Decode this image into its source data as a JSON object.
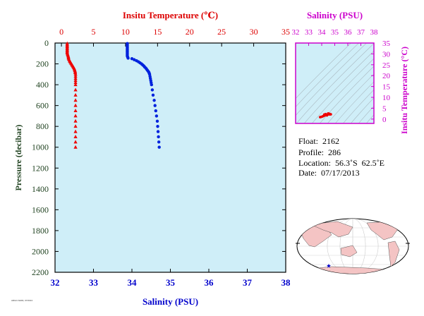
{
  "chart_data": [
    {
      "type": "scatter",
      "title": "",
      "top_axis": {
        "label": "Insitu Temperature (℃)",
        "range": [
          -1,
          35
        ],
        "ticks": [
          0,
          5,
          10,
          15,
          20,
          25,
          30,
          35
        ],
        "color": "#dd0000"
      },
      "bottom_axis": {
        "label": "Salinity (PSU)",
        "range": [
          32,
          38
        ],
        "ticks": [
          32,
          33,
          34,
          35,
          36,
          37,
          38
        ],
        "color": "#0000cc"
      },
      "y_axis": {
        "label": "Pressure (decibar)",
        "range": [
          0,
          2200
        ],
        "inverted": true,
        "ticks": [
          0,
          200,
          400,
          600,
          800,
          1000,
          1200,
          1400,
          1600,
          1800,
          2000,
          2200
        ],
        "color": "#224422"
      },
      "background": "#cfeef8",
      "series": [
        {
          "marker": "triangle",
          "color": "#ee0000",
          "axis": "top",
          "points": [
            [
              0.9,
              5
            ],
            [
              0.9,
              15
            ],
            [
              0.9,
              25
            ],
            [
              0.9,
              35
            ],
            [
              0.9,
              45
            ],
            [
              0.9,
              55
            ],
            [
              0.9,
              65
            ],
            [
              0.9,
              75
            ],
            [
              0.9,
              85
            ],
            [
              0.9,
              95
            ],
            [
              0.95,
              105
            ],
            [
              1.0,
              115
            ],
            [
              1.05,
              125
            ],
            [
              1.1,
              135
            ],
            [
              1.1,
              145
            ],
            [
              1.15,
              155
            ],
            [
              1.25,
              165
            ],
            [
              1.3,
              175
            ],
            [
              1.4,
              185
            ],
            [
              1.5,
              195
            ],
            [
              1.6,
              205
            ],
            [
              1.7,
              215
            ],
            [
              1.8,
              225
            ],
            [
              1.9,
              235
            ],
            [
              2.0,
              245
            ],
            [
              2.05,
              255
            ],
            [
              2.1,
              265
            ],
            [
              2.15,
              275
            ],
            [
              2.15,
              285
            ],
            [
              2.2,
              300
            ],
            [
              2.2,
              320
            ],
            [
              2.2,
              340
            ],
            [
              2.2,
              360
            ],
            [
              2.2,
              380
            ],
            [
              2.2,
              400
            ],
            [
              2.2,
              450
            ],
            [
              2.2,
              500
            ],
            [
              2.2,
              550
            ],
            [
              2.2,
              600
            ],
            [
              2.2,
              650
            ],
            [
              2.2,
              700
            ],
            [
              2.2,
              750
            ],
            [
              2.2,
              800
            ],
            [
              2.2,
              850
            ],
            [
              2.2,
              900
            ],
            [
              2.2,
              950
            ],
            [
              2.2,
              1000
            ]
          ]
        },
        {
          "marker": "circle",
          "color": "#0022dd",
          "axis": "bottom",
          "points": [
            [
              33.88,
              5
            ],
            [
              33.88,
              15
            ],
            [
              33.88,
              25
            ],
            [
              33.88,
              35
            ],
            [
              33.88,
              45
            ],
            [
              33.88,
              55
            ],
            [
              33.88,
              65
            ],
            [
              33.88,
              75
            ],
            [
              33.88,
              85
            ],
            [
              33.88,
              95
            ],
            [
              33.88,
              105
            ],
            [
              33.88,
              115
            ],
            [
              33.88,
              125
            ],
            [
              33.89,
              135
            ],
            [
              33.9,
              145
            ],
            [
              34.0,
              150
            ],
            [
              34.06,
              160
            ],
            [
              34.12,
              170
            ],
            [
              34.17,
              180
            ],
            [
              34.21,
              190
            ],
            [
              34.25,
              200
            ],
            [
              34.28,
              210
            ],
            [
              34.31,
              220
            ],
            [
              34.33,
              230
            ],
            [
              34.36,
              240
            ],
            [
              34.38,
              250
            ],
            [
              34.4,
              260
            ],
            [
              34.42,
              270
            ],
            [
              34.44,
              280
            ],
            [
              34.45,
              290
            ],
            [
              34.46,
              300
            ],
            [
              34.47,
              320
            ],
            [
              34.48,
              340
            ],
            [
              34.49,
              360
            ],
            [
              34.5,
              380
            ],
            [
              34.51,
              400
            ],
            [
              34.53,
              450
            ],
            [
              34.55,
              500
            ],
            [
              34.58,
              550
            ],
            [
              34.6,
              600
            ],
            [
              34.62,
              650
            ],
            [
              34.64,
              700
            ],
            [
              34.66,
              750
            ],
            [
              34.67,
              800
            ],
            [
              34.68,
              850
            ],
            [
              34.69,
              900
            ],
            [
              34.7,
              950
            ],
            [
              34.71,
              1000
            ]
          ]
        }
      ]
    },
    {
      "type": "scatter",
      "title": "",
      "top_axis": {
        "label": "Salinity (PSU)",
        "range": [
          32,
          38
        ],
        "ticks": [
          32,
          33,
          34,
          35,
          36,
          37,
          38
        ],
        "color": "#cc00cc"
      },
      "right_axis": {
        "label": "Insitu Temperature (°C)",
        "range": [
          -2,
          35
        ],
        "ticks": [
          0,
          5,
          10,
          15,
          20,
          25,
          30,
          35
        ],
        "color": "#cc00cc"
      },
      "background": "#cfeef8",
      "series": [
        {
          "marker": "circle",
          "color": "#ee0000",
          "points": [
            [
              33.88,
              0.9
            ],
            [
              33.95,
              1.0
            ],
            [
              34.05,
              1.2
            ],
            [
              34.12,
              1.4
            ],
            [
              34.2,
              1.6
            ],
            [
              34.28,
              1.8
            ],
            [
              34.35,
              2.0
            ],
            [
              34.42,
              2.1
            ],
            [
              34.5,
              2.2
            ],
            [
              34.55,
              2.2
            ],
            [
              34.6,
              2.2
            ],
            [
              34.65,
              2.2
            ],
            [
              34.7,
              2.2
            ],
            [
              34.5,
              2.6
            ],
            [
              34.6,
              2.4
            ],
            [
              34.4,
              1.7
            ],
            [
              34.3,
              2.3
            ],
            [
              34.2,
              2.1
            ]
          ]
        }
      ]
    }
  ],
  "info": {
    "float": "Float:  2162",
    "profile": "Profile:  286",
    "location": "Location:  56.3˚S  62.5˚E",
    "date": "Date:  07/17/2013"
  },
  "stamp": "ARGO-NIWA, 07/2013",
  "map": {
    "ocean": "#ffffff",
    "land": "#f4c4c4",
    "marker": "#0000cc"
  }
}
